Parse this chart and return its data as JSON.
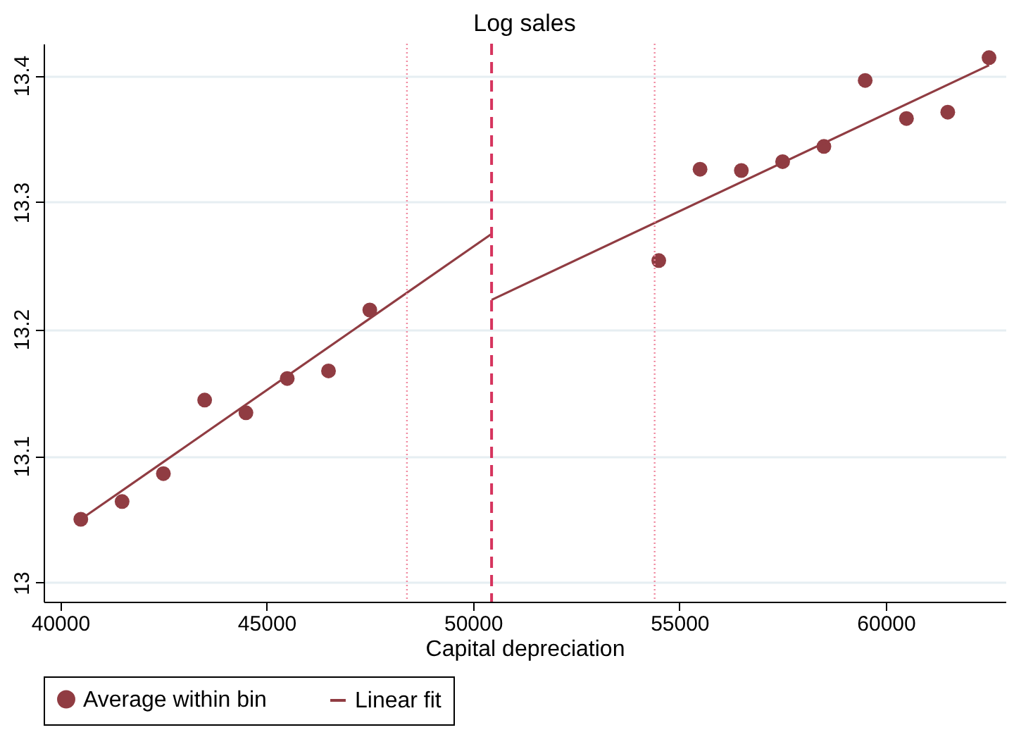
{
  "chart_data": {
    "type": "scatter",
    "title": "Log sales",
    "xlabel": "Capital depreciation",
    "xlim": [
      39600,
      62900
    ],
    "xticks": [
      40000,
      45000,
      50000,
      55000,
      60000
    ],
    "ylim": [
      12.985,
      13.425
    ],
    "yticks": [
      13,
      13.1,
      13.2,
      13.3,
      13.4
    ],
    "grid": "y",
    "legend": "bottom",
    "series": [
      {
        "name": "Average within bin",
        "marker": "circle",
        "color": "#903c42",
        "x": [
          40500,
          41500,
          42500,
          43500,
          44500,
          45500,
          46500,
          47500,
          54500,
          55500,
          56500,
          57500,
          58500,
          59500,
          60500,
          61500,
          62500
        ],
        "values": [
          13.05,
          13.064,
          13.086,
          13.144,
          13.134,
          13.161,
          13.167,
          13.215,
          13.254,
          13.326,
          13.325,
          13.332,
          13.344,
          13.396,
          13.366,
          13.371,
          13.414
        ]
      },
      {
        "name": "Linear fit",
        "type": "line",
        "color": "#903c42",
        "line_style": "solid",
        "x": [
          40500,
          50450
        ],
        "values": [
          13.05,
          13.275
        ]
      },
      {
        "type": "line",
        "color": "#903c42",
        "line_style": "solid",
        "x": [
          50450,
          62500
        ],
        "values": [
          13.223,
          13.408
        ]
      }
    ],
    "ref_lines": [
      {
        "axis": "x",
        "value": 50450,
        "color": "#d6345e",
        "line_style": "dashed"
      },
      {
        "axis": "x",
        "value": 48400,
        "color": "#f08aa0",
        "line_style": "dotted"
      },
      {
        "axis": "x",
        "value": 54400,
        "color": "#f08aa0",
        "line_style": "dotted"
      }
    ]
  }
}
